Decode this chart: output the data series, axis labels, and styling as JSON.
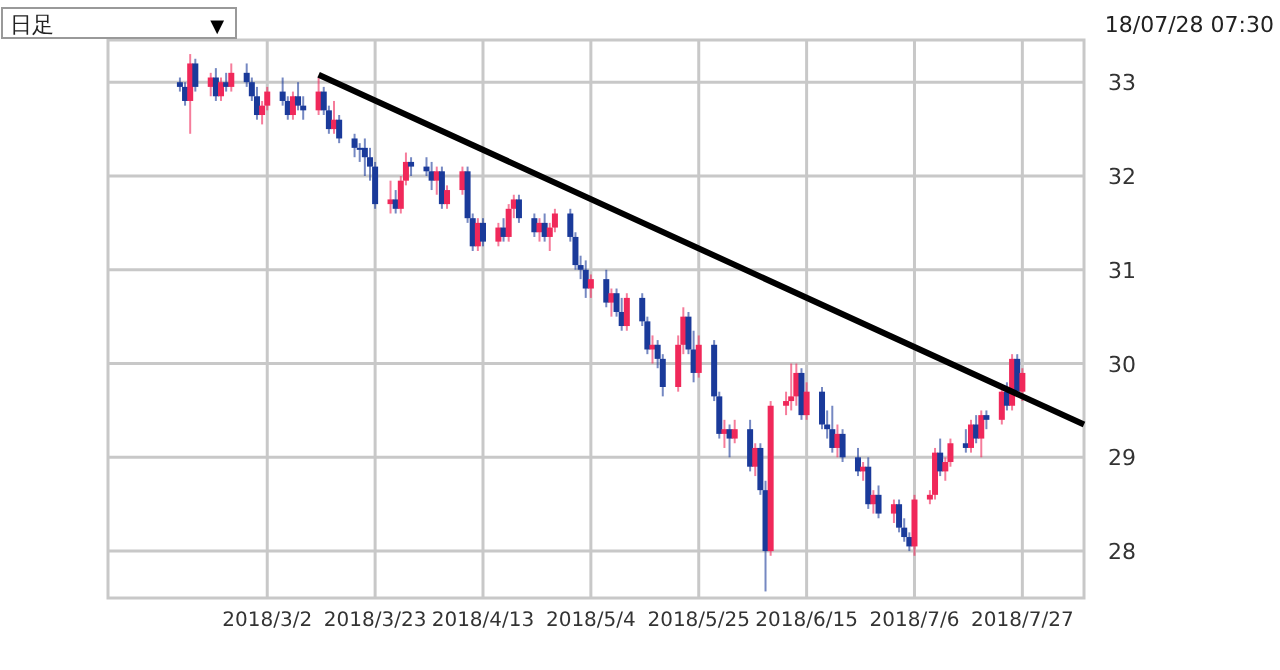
{
  "chart_data": {
    "type": "candlestick",
    "x": [
      "2018-02-13",
      "2018-02-14",
      "2018-02-15",
      "2018-02-16",
      "2018-02-19",
      "2018-02-20",
      "2018-02-21",
      "2018-02-22",
      "2018-02-23",
      "2018-02-26",
      "2018-02-27",
      "2018-02-28",
      "2018-03-01",
      "2018-03-02",
      "2018-03-05",
      "2018-03-06",
      "2018-03-07",
      "2018-03-08",
      "2018-03-09",
      "2018-03-12",
      "2018-03-13",
      "2018-03-14",
      "2018-03-15",
      "2018-03-16",
      "2018-03-19",
      "2018-03-20",
      "2018-03-21",
      "2018-03-22",
      "2018-03-23",
      "2018-03-26",
      "2018-03-27",
      "2018-03-28",
      "2018-03-29",
      "2018-03-30",
      "2018-04-02",
      "2018-04-03",
      "2018-04-04",
      "2018-04-05",
      "2018-04-06",
      "2018-04-09",
      "2018-04-10",
      "2018-04-11",
      "2018-04-12",
      "2018-04-13",
      "2018-04-16",
      "2018-04-17",
      "2018-04-18",
      "2018-04-19",
      "2018-04-20",
      "2018-04-23",
      "2018-04-24",
      "2018-04-25",
      "2018-04-26",
      "2018-04-27",
      "2018-04-30",
      "2018-05-01",
      "2018-05-02",
      "2018-05-03",
      "2018-05-04",
      "2018-05-07",
      "2018-05-08",
      "2018-05-09",
      "2018-05-10",
      "2018-05-11",
      "2018-05-14",
      "2018-05-15",
      "2018-05-16",
      "2018-05-17",
      "2018-05-18",
      "2018-05-21",
      "2018-05-22",
      "2018-05-23",
      "2018-05-24",
      "2018-05-25",
      "2018-05-28",
      "2018-05-29",
      "2018-05-30",
      "2018-05-31",
      "2018-06-01",
      "2018-06-04",
      "2018-06-05",
      "2018-06-06",
      "2018-06-07",
      "2018-06-08",
      "2018-06-11",
      "2018-06-12",
      "2018-06-13",
      "2018-06-14",
      "2018-06-15",
      "2018-06-18",
      "2018-06-19",
      "2018-06-20",
      "2018-06-21",
      "2018-06-22",
      "2018-06-25",
      "2018-06-26",
      "2018-06-27",
      "2018-06-28",
      "2018-06-29",
      "2018-07-02",
      "2018-07-03",
      "2018-07-04",
      "2018-07-05",
      "2018-07-06",
      "2018-07-09",
      "2018-07-10",
      "2018-07-11",
      "2018-07-12",
      "2018-07-13",
      "2018-07-16",
      "2018-07-17",
      "2018-07-18",
      "2018-07-19",
      "2018-07-20",
      "2018-07-23",
      "2018-07-24",
      "2018-07-25",
      "2018-07-26",
      "2018-07-27"
    ],
    "ohlc": [
      [
        33.0,
        33.05,
        32.9,
        32.95
      ],
      [
        32.95,
        33.0,
        32.75,
        32.8
      ],
      [
        32.8,
        33.3,
        32.45,
        33.2
      ],
      [
        33.2,
        33.25,
        32.9,
        32.95
      ],
      [
        32.95,
        33.1,
        32.85,
        33.05
      ],
      [
        33.05,
        33.15,
        32.8,
        32.85
      ],
      [
        32.85,
        33.05,
        32.8,
        33.0
      ],
      [
        33.0,
        33.1,
        32.9,
        32.95
      ],
      [
        32.95,
        33.2,
        32.9,
        33.1
      ],
      [
        33.1,
        33.2,
        32.95,
        33.0
      ],
      [
        33.0,
        33.05,
        32.8,
        32.85
      ],
      [
        32.85,
        32.95,
        32.6,
        32.65
      ],
      [
        32.65,
        32.8,
        32.55,
        32.75
      ],
      [
        32.75,
        32.95,
        32.7,
        32.9
      ],
      [
        32.9,
        33.05,
        32.75,
        32.8
      ],
      [
        32.8,
        32.85,
        32.6,
        32.65
      ],
      [
        32.65,
        32.9,
        32.6,
        32.85
      ],
      [
        32.85,
        33.0,
        32.7,
        32.75
      ],
      [
        32.75,
        32.85,
        32.6,
        32.7
      ],
      [
        32.7,
        33.05,
        32.65,
        32.9
      ],
      [
        32.9,
        32.95,
        32.65,
        32.7
      ],
      [
        32.7,
        32.75,
        32.45,
        32.5
      ],
      [
        32.5,
        32.8,
        32.45,
        32.6
      ],
      [
        32.6,
        32.65,
        32.35,
        32.4
      ],
      [
        32.4,
        32.45,
        32.2,
        32.3
      ],
      [
        32.3,
        32.35,
        32.15,
        32.3
      ],
      [
        32.3,
        32.4,
        32.0,
        32.2
      ],
      [
        32.2,
        32.3,
        31.95,
        32.1
      ],
      [
        32.1,
        32.15,
        31.65,
        31.7
      ],
      [
        31.7,
        31.95,
        31.6,
        31.75
      ],
      [
        31.75,
        31.85,
        31.6,
        31.65
      ],
      [
        31.65,
        32.0,
        31.6,
        31.95
      ],
      [
        31.95,
        32.25,
        31.9,
        32.15
      ],
      [
        32.15,
        32.2,
        32.0,
        32.1
      ],
      [
        32.1,
        32.2,
        32.0,
        32.05
      ],
      [
        32.05,
        32.15,
        31.85,
        31.95
      ],
      [
        31.95,
        32.1,
        31.8,
        32.05
      ],
      [
        32.05,
        32.1,
        31.65,
        31.7
      ],
      [
        31.7,
        31.9,
        31.65,
        31.85
      ],
      [
        31.85,
        32.1,
        31.8,
        32.05
      ],
      [
        32.05,
        32.1,
        31.5,
        31.55
      ],
      [
        31.55,
        31.6,
        31.2,
        31.25
      ],
      [
        31.25,
        31.55,
        31.2,
        31.5
      ],
      [
        31.5,
        31.55,
        31.25,
        31.3
      ],
      [
        31.3,
        31.5,
        31.25,
        31.45
      ],
      [
        31.45,
        31.55,
        31.3,
        31.35
      ],
      [
        31.35,
        31.7,
        31.3,
        31.65
      ],
      [
        31.65,
        31.8,
        31.55,
        31.75
      ],
      [
        31.75,
        31.8,
        31.5,
        31.55
      ],
      [
        31.55,
        31.6,
        31.35,
        31.4
      ],
      [
        31.4,
        31.55,
        31.3,
        31.5
      ],
      [
        31.5,
        31.6,
        31.3,
        31.35
      ],
      [
        31.35,
        31.5,
        31.2,
        31.45
      ],
      [
        31.45,
        31.65,
        31.4,
        31.6
      ],
      [
        31.6,
        31.65,
        31.3,
        31.35
      ],
      [
        31.35,
        31.4,
        31.0,
        31.05
      ],
      [
        31.05,
        31.15,
        30.9,
        31.0
      ],
      [
        31.0,
        31.1,
        30.7,
        30.8
      ],
      [
        30.8,
        30.95,
        30.7,
        30.9
      ],
      [
        30.9,
        31.0,
        30.6,
        30.65
      ],
      [
        30.65,
        30.8,
        30.5,
        30.75
      ],
      [
        30.75,
        30.8,
        30.5,
        30.55
      ],
      [
        30.55,
        30.7,
        30.35,
        30.4
      ],
      [
        30.4,
        30.75,
        30.35,
        30.7
      ],
      [
        30.7,
        30.75,
        30.4,
        30.45
      ],
      [
        30.45,
        30.5,
        30.1,
        30.15
      ],
      [
        30.15,
        30.3,
        30.0,
        30.2
      ],
      [
        30.2,
        30.25,
        29.95,
        30.05
      ],
      [
        30.05,
        30.1,
        29.65,
        29.75
      ],
      [
        29.75,
        30.3,
        29.7,
        30.2
      ],
      [
        30.2,
        30.6,
        30.1,
        30.5
      ],
      [
        30.5,
        30.55,
        30.1,
        30.15
      ],
      [
        30.15,
        30.35,
        29.8,
        29.9
      ],
      [
        29.9,
        30.3,
        29.85,
        30.2
      ],
      [
        30.2,
        30.25,
        29.6,
        29.65
      ],
      [
        29.65,
        29.7,
        29.2,
        29.25
      ],
      [
        29.25,
        29.4,
        29.1,
        29.3
      ],
      [
        29.3,
        29.35,
        29.0,
        29.2
      ],
      [
        29.2,
        29.4,
        29.15,
        29.3
      ],
      [
        29.3,
        29.4,
        28.85,
        28.9
      ],
      [
        28.9,
        29.15,
        28.8,
        29.1
      ],
      [
        29.1,
        29.15,
        28.6,
        28.65
      ],
      [
        28.65,
        28.75,
        27.57,
        28.0
      ],
      [
        28.0,
        29.6,
        27.95,
        29.55
      ],
      [
        29.55,
        29.7,
        29.45,
        29.6
      ],
      [
        29.6,
        30.0,
        29.5,
        29.65
      ],
      [
        29.65,
        30.0,
        29.55,
        29.9
      ],
      [
        29.9,
        29.95,
        29.4,
        29.45
      ],
      [
        29.45,
        29.8,
        29.4,
        29.7
      ],
      [
        29.7,
        29.75,
        29.3,
        29.35
      ],
      [
        29.35,
        29.5,
        29.2,
        29.3
      ],
      [
        29.3,
        29.55,
        29.05,
        29.1
      ],
      [
        29.1,
        29.35,
        29.0,
        29.25
      ],
      [
        29.25,
        29.3,
        28.95,
        29.0
      ],
      [
        29.0,
        29.1,
        28.8,
        28.85
      ],
      [
        28.85,
        28.95,
        28.75,
        28.9
      ],
      [
        28.9,
        29.0,
        28.45,
        28.5
      ],
      [
        28.5,
        28.65,
        28.4,
        28.6
      ],
      [
        28.6,
        28.7,
        28.35,
        28.4
      ],
      [
        28.4,
        28.55,
        28.3,
        28.5
      ],
      [
        28.5,
        28.55,
        28.2,
        28.25
      ],
      [
        28.25,
        28.35,
        28.1,
        28.15
      ],
      [
        28.15,
        28.2,
        28.0,
        28.05
      ],
      [
        28.05,
        28.6,
        27.95,
        28.55
      ],
      [
        28.55,
        28.65,
        28.5,
        28.6
      ],
      [
        28.6,
        29.1,
        28.55,
        29.05
      ],
      [
        29.05,
        29.2,
        28.8,
        28.85
      ],
      [
        28.85,
        29.0,
        28.75,
        28.95
      ],
      [
        28.95,
        29.2,
        28.9,
        29.15
      ],
      [
        29.15,
        29.3,
        29.05,
        29.1
      ],
      [
        29.1,
        29.4,
        29.05,
        29.35
      ],
      [
        29.35,
        29.45,
        29.15,
        29.2
      ],
      [
        29.2,
        29.5,
        29.0,
        29.45
      ],
      [
        29.45,
        29.5,
        29.3,
        29.4
      ],
      [
        29.4,
        29.75,
        29.35,
        29.7
      ],
      [
        29.7,
        29.8,
        29.5,
        29.55
      ],
      [
        29.55,
        30.1,
        29.5,
        30.05
      ],
      [
        30.05,
        30.1,
        29.65,
        29.7
      ],
      [
        29.7,
        29.95,
        29.6,
        29.9
      ]
    ],
    "colors": [
      "#1a3a9a",
      "#1a3a9a",
      "#f0285a",
      "#1a3a9a",
      "#f0285a",
      "#1a3a9a",
      "#f0285a",
      "#1a3a9a",
      "#f0285a",
      "#1a3a9a",
      "#1a3a9a",
      "#1a3a9a",
      "#f0285a",
      "#f0285a",
      "#1a3a9a",
      "#1a3a9a",
      "#f0285a",
      "#1a3a9a",
      "#1a3a9a",
      "#f0285a",
      "#1a3a9a",
      "#1a3a9a",
      "#f0285a",
      "#1a3a9a",
      "#1a3a9a",
      "#1a3a9a",
      "#1a3a9a",
      "#1a3a9a",
      "#1a3a9a",
      "#f0285a",
      "#1a3a9a",
      "#f0285a",
      "#f0285a",
      "#1a3a9a",
      "#1a3a9a",
      "#1a3a9a",
      "#f0285a",
      "#1a3a9a",
      "#f0285a",
      "#f0285a",
      "#1a3a9a",
      "#1a3a9a",
      "#f0285a",
      "#1a3a9a",
      "#f0285a",
      "#1a3a9a",
      "#f0285a",
      "#f0285a",
      "#1a3a9a",
      "#1a3a9a",
      "#f0285a",
      "#1a3a9a",
      "#f0285a",
      "#f0285a",
      "#1a3a9a",
      "#1a3a9a",
      "#1a3a9a",
      "#1a3a9a",
      "#f0285a",
      "#1a3a9a",
      "#f0285a",
      "#1a3a9a",
      "#1a3a9a",
      "#f0285a",
      "#1a3a9a",
      "#1a3a9a",
      "#f0285a",
      "#1a3a9a",
      "#1a3a9a",
      "#f0285a",
      "#f0285a",
      "#1a3a9a",
      "#1a3a9a",
      "#f0285a",
      "#1a3a9a",
      "#1a3a9a",
      "#f0285a",
      "#1a3a9a",
      "#f0285a",
      "#1a3a9a",
      "#f0285a",
      "#1a3a9a",
      "#1a3a9a",
      "#f0285a",
      "#f0285a",
      "#f0285a",
      "#f0285a",
      "#1a3a9a",
      "#f0285a",
      "#1a3a9a",
      "#1a3a9a",
      "#1a3a9a",
      "#f0285a",
      "#1a3a9a",
      "#1a3a9a",
      "#f0285a",
      "#1a3a9a",
      "#f0285a",
      "#1a3a9a",
      "#f0285a",
      "#1a3a9a",
      "#1a3a9a",
      "#1a3a9a",
      "#f0285a",
      "#f0285a",
      "#f0285a",
      "#1a3a9a",
      "#f0285a",
      "#f0285a",
      "#1a3a9a",
      "#f0285a",
      "#1a3a9a",
      "#f0285a",
      "#1a3a9a",
      "#f0285a",
      "#1a3a9a",
      "#f0285a",
      "#1a3a9a",
      "#f0285a"
    ],
    "series": [
      {
        "type": "line",
        "color": "#000000",
        "x": [
          "2018-03-12",
          "2018-08-08"
        ],
        "values": [
          33.08,
          29.35
        ]
      }
    ],
    "xlim": [
      "2018-01-30",
      "2018-08-08"
    ],
    "ylim": [
      27.5,
      33.45
    ],
    "xticks": [
      {
        "value": "2018-03-02",
        "label": "2018/3/2"
      },
      {
        "value": "2018-03-23",
        "label": "2018/3/23"
      },
      {
        "value": "2018-04-13",
        "label": "2018/4/13"
      },
      {
        "value": "2018-05-04",
        "label": "2018/5/4"
      },
      {
        "value": "2018-05-25",
        "label": "2018/5/25"
      },
      {
        "value": "2018-06-15",
        "label": "2018/6/15"
      },
      {
        "value": "2018-07-06",
        "label": "2018/7/6"
      },
      {
        "value": "2018-07-27",
        "label": "2018/7/27"
      }
    ],
    "yticks": [
      28,
      29,
      30,
      31,
      32,
      33
    ],
    "grid": true,
    "annotations": [
      "日足 ▼",
      "18/07/28 07:30"
    ]
  }
}
